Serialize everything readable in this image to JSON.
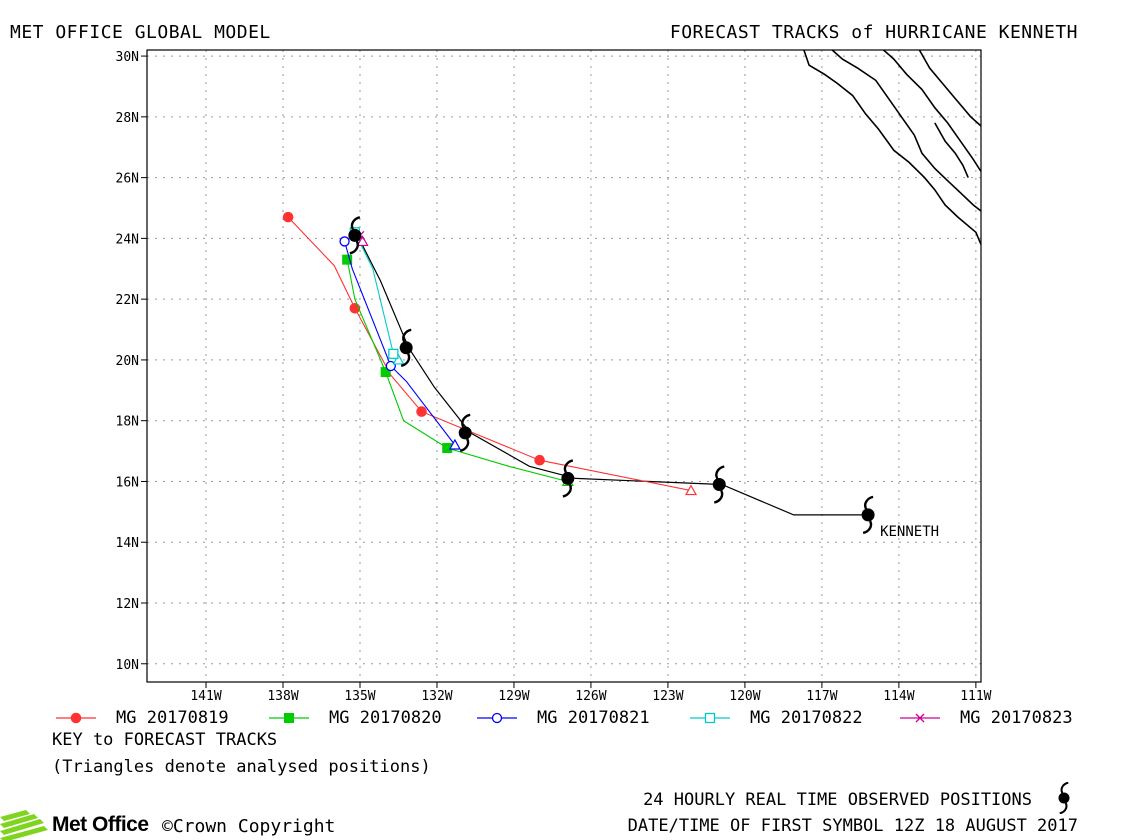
{
  "header": {
    "left_title": "MET OFFICE GLOBAL MODEL",
    "right_title": "FORECAST TRACKS of HURRICANE KENNETH"
  },
  "chart_data": {
    "type": "line",
    "title": "FORECAST TRACKS of HURRICANE KENNETH",
    "x_unit": "degrees longitude (W)",
    "y_unit": "degrees latitude (N)",
    "xlim": [
      -143.3,
      -110.8
    ],
    "ylim": [
      9.4,
      30.2
    ],
    "x_ticks": [
      -141,
      -138,
      -135,
      -132,
      -129,
      -126,
      -123,
      -120,
      -117,
      -114,
      -111
    ],
    "x_tick_labels": [
      "141W",
      "138W",
      "135W",
      "132W",
      "129W",
      "126W",
      "123W",
      "120W",
      "117W",
      "114W",
      "111W"
    ],
    "y_ticks": [
      10,
      12,
      14,
      16,
      18,
      20,
      22,
      24,
      26,
      28,
      30
    ],
    "y_tick_labels": [
      "10N",
      "12N",
      "14N",
      "16N",
      "18N",
      "20N",
      "22N",
      "24N",
      "26N",
      "28N",
      "30N"
    ],
    "grid": true,
    "observed_track": {
      "name": "KENNETH",
      "color": "#000000",
      "path": [
        [
          -115.2,
          14.9
        ],
        [
          -118.1,
          14.9
        ],
        [
          -120.9,
          15.9
        ],
        [
          -126.6,
          16.1
        ],
        [
          -128.4,
          16.5
        ],
        [
          -130.7,
          17.6
        ],
        [
          -132.1,
          19.1
        ],
        [
          -133.1,
          20.4
        ],
        [
          -134.2,
          22.6
        ],
        [
          -135.1,
          24.1
        ]
      ],
      "symbols": [
        [
          -115.2,
          14.9
        ],
        [
          -121.0,
          15.9
        ],
        [
          -126.9,
          16.1
        ],
        [
          -130.9,
          17.6
        ],
        [
          -133.2,
          20.4
        ],
        [
          -135.2,
          24.1
        ]
      ]
    },
    "series": [
      {
        "name": "MG 20170819",
        "color": "#ff3333",
        "marker": "filled-circle",
        "points": [
          [
            -137.8,
            24.7
          ],
          [
            -136.0,
            23.1
          ],
          [
            -135.2,
            21.7
          ],
          [
            -133.8,
            19.5
          ],
          [
            -132.6,
            18.3
          ],
          [
            -128.0,
            16.7
          ],
          [
            -122.1,
            15.7
          ]
        ],
        "markers": [
          [
            -137.8,
            24.7
          ],
          [
            -135.2,
            21.7
          ],
          [
            -132.6,
            18.3
          ],
          [
            -128.0,
            16.7
          ]
        ]
      },
      {
        "name": "MG 20170820",
        "color": "#00cc00",
        "marker": "filled-square",
        "points": [
          [
            -135.5,
            23.3
          ],
          [
            -135.2,
            22.0
          ],
          [
            -134.0,
            19.6
          ],
          [
            -133.3,
            18.0
          ],
          [
            -131.6,
            17.1
          ],
          [
            -129.2,
            16.5
          ],
          [
            -126.9,
            16.0
          ]
        ],
        "markers": [
          [
            -135.5,
            23.3
          ],
          [
            -134.0,
            19.6
          ],
          [
            -131.6,
            17.1
          ]
        ]
      },
      {
        "name": "MG 20170821",
        "color": "#0000ff",
        "marker": "open-circle",
        "points": [
          [
            -135.6,
            23.9
          ],
          [
            -135.3,
            23.0
          ],
          [
            -133.8,
            19.8
          ],
          [
            -133.2,
            19.3
          ],
          [
            -131.3,
            17.2
          ]
        ],
        "markers": [
          [
            -135.6,
            23.9
          ],
          [
            -133.8,
            19.8
          ]
        ]
      },
      {
        "name": "MG 20170822",
        "color": "#00cccc",
        "marker": "open-square",
        "points": [
          [
            -135.2,
            24.2
          ],
          [
            -134.5,
            23.0
          ],
          [
            -133.7,
            20.2
          ],
          [
            -133.5,
            20.0
          ]
        ],
        "markers": [
          [
            -135.2,
            24.2
          ],
          [
            -133.7,
            20.2
          ]
        ]
      },
      {
        "name": "MG 20170823",
        "color": "#cc0099",
        "marker": "x",
        "points": [
          [
            -135.0,
            24.1
          ],
          [
            -134.9,
            23.9
          ]
        ],
        "markers": [
          [
            -135.0,
            24.1
          ]
        ]
      }
    ],
    "storm_label": "KENNETH"
  },
  "legend": [
    {
      "label": "MG 20170819",
      "color": "#ff3333",
      "marker": "filled-circle"
    },
    {
      "label": "MG 20170820",
      "color": "#00cc00",
      "marker": "filled-square"
    },
    {
      "label": "MG 20170821",
      "color": "#0000ff",
      "marker": "open-circle"
    },
    {
      "label": "MG 20170822",
      "color": "#00cccc",
      "marker": "open-square"
    },
    {
      "label": "MG 20170823",
      "color": "#cc0099",
      "marker": "x"
    }
  ],
  "key": {
    "title": "KEY to FORECAST TRACKS",
    "note": "(Triangles denote analysed positions)"
  },
  "footer": {
    "observed_text": "24 HOURLY REAL TIME OBSERVED POSITIONS",
    "date_text": "DATE/TIME OF FIRST SYMBOL 12Z 18 AUGUST 2017",
    "logo_text": "Met Office",
    "copyright": "©Crown Copyright"
  }
}
